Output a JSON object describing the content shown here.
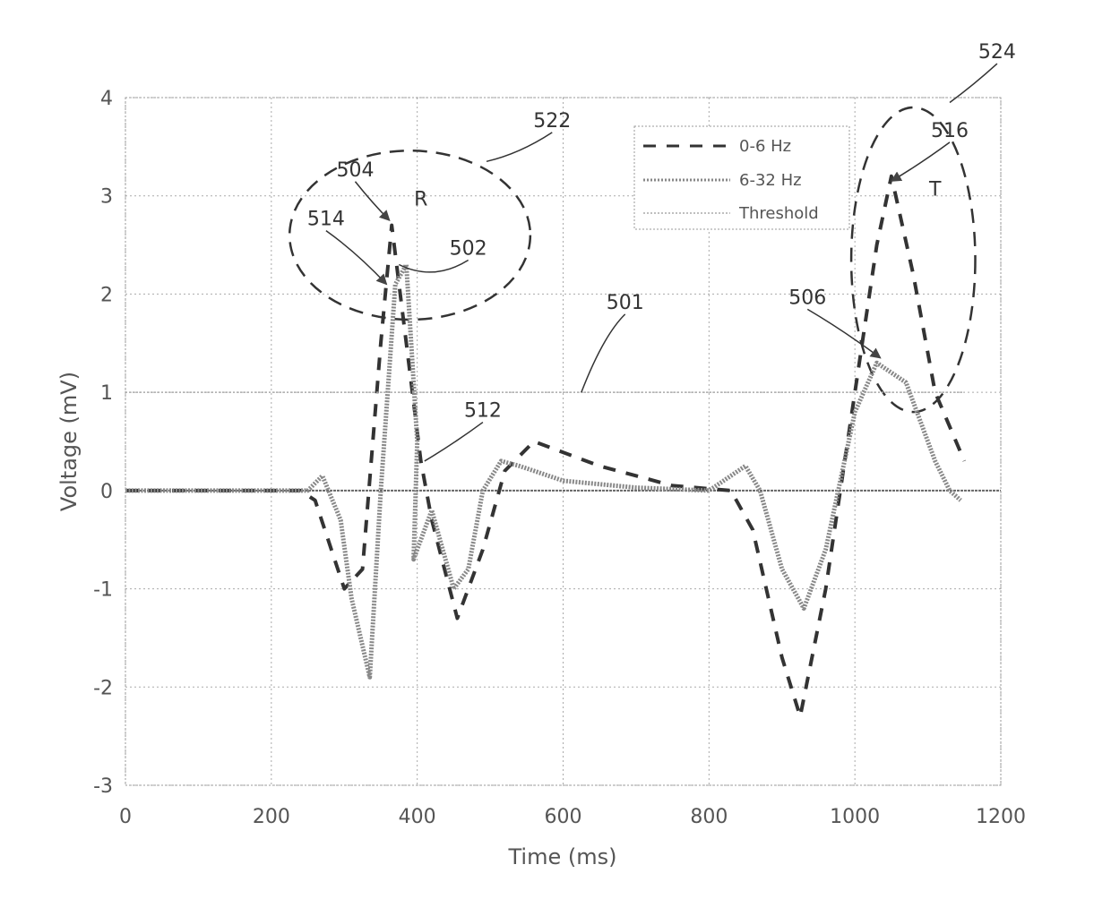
{
  "chart_data": {
    "type": "line",
    "title": "",
    "xlabel": "Time (ms)",
    "ylabel": "Voltage (mV)",
    "xlim": [
      0,
      1200
    ],
    "ylim": [
      -3,
      4
    ],
    "xticks": [
      0,
      200,
      400,
      600,
      800,
      1000,
      1200
    ],
    "yticks": [
      -3,
      -2,
      -1,
      0,
      1,
      2,
      3,
      4
    ],
    "grid": true,
    "legend_position": "top-right",
    "series": [
      {
        "name": "0-6 Hz",
        "style": "dashed",
        "color": "#333333",
        "x": [
          0,
          240,
          260,
          300,
          325,
          350,
          365,
          385,
          405,
          420,
          455,
          490,
          520,
          560,
          650,
          750,
          830,
          860,
          900,
          925,
          960,
          1000,
          1030,
          1050,
          1080,
          1110,
          1150
        ],
        "y": [
          0,
          0,
          -0.1,
          -1.0,
          -0.8,
          1.5,
          2.7,
          1.5,
          0.3,
          -0.3,
          -1.3,
          -0.6,
          0.2,
          0.5,
          0.25,
          0.05,
          0,
          -0.4,
          -1.7,
          -2.3,
          -1.0,
          1.0,
          2.5,
          3.2,
          2.2,
          1.0,
          0.3
        ]
      },
      {
        "name": "6-32 Hz",
        "style": "dotted",
        "color": "#888888",
        "x": [
          0,
          250,
          270,
          295,
          310,
          335,
          350,
          370,
          385,
          400,
          395,
          420,
          450,
          470,
          490,
          515,
          540,
          600,
          700,
          800,
          850,
          870,
          900,
          930,
          960,
          1000,
          1030,
          1070,
          1110,
          1130,
          1145
        ],
        "y": [
          0,
          0,
          0.15,
          -0.3,
          -1.1,
          -1.9,
          0,
          2.1,
          2.3,
          0.5,
          -0.7,
          -0.2,
          -1.0,
          -0.8,
          0,
          0.3,
          0.25,
          0.1,
          0.03,
          0,
          0.25,
          0,
          -0.8,
          -1.2,
          -0.6,
          0.8,
          1.3,
          1.1,
          0.3,
          0,
          -0.1
        ]
      },
      {
        "name": "Threshold",
        "style": "thin-dotted",
        "color": "#aaaaaa",
        "x": [
          0,
          1150
        ],
        "y": [
          1,
          1
        ]
      }
    ],
    "annotations": [
      {
        "text": "R",
        "x": 405,
        "y": 2.9
      },
      {
        "text": "T",
        "x": 1110,
        "y": 3.0
      },
      {
        "text": "504",
        "x": 315,
        "y": 3.2,
        "target": [
          362,
          2.75
        ]
      },
      {
        "text": "514",
        "x": 275,
        "y": 2.7,
        "target": [
          358,
          2.1
        ]
      },
      {
        "text": "502",
        "x": 470,
        "y": 2.4,
        "target": [
          375,
          2.3
        ]
      },
      {
        "text": "512",
        "x": 490,
        "y": 0.75,
        "target": [
          410,
          0.3
        ]
      },
      {
        "text": "501",
        "x": 685,
        "y": 1.85,
        "target": [
          625,
          1.0
        ]
      },
      {
        "text": "506",
        "x": 935,
        "y": 1.9,
        "target": [
          1035,
          1.35
        ]
      },
      {
        "text": "516",
        "x": 1130,
        "y": 3.6,
        "target": [
          1050,
          3.15
        ]
      },
      {
        "text": "522",
        "x": 585,
        "y": 3.7,
        "target": [
          495,
          3.35
        ]
      },
      {
        "text": "524",
        "x": 1195,
        "y": 4.4,
        "target": [
          1130,
          3.95
        ]
      }
    ],
    "regions": [
      {
        "label": "522",
        "cx": 390,
        "cy": 2.6,
        "rx": 165,
        "ry": 0.86
      },
      {
        "label": "524",
        "cx": 1080,
        "cy": 2.35,
        "rx": 85,
        "ry": 1.55
      }
    ]
  }
}
